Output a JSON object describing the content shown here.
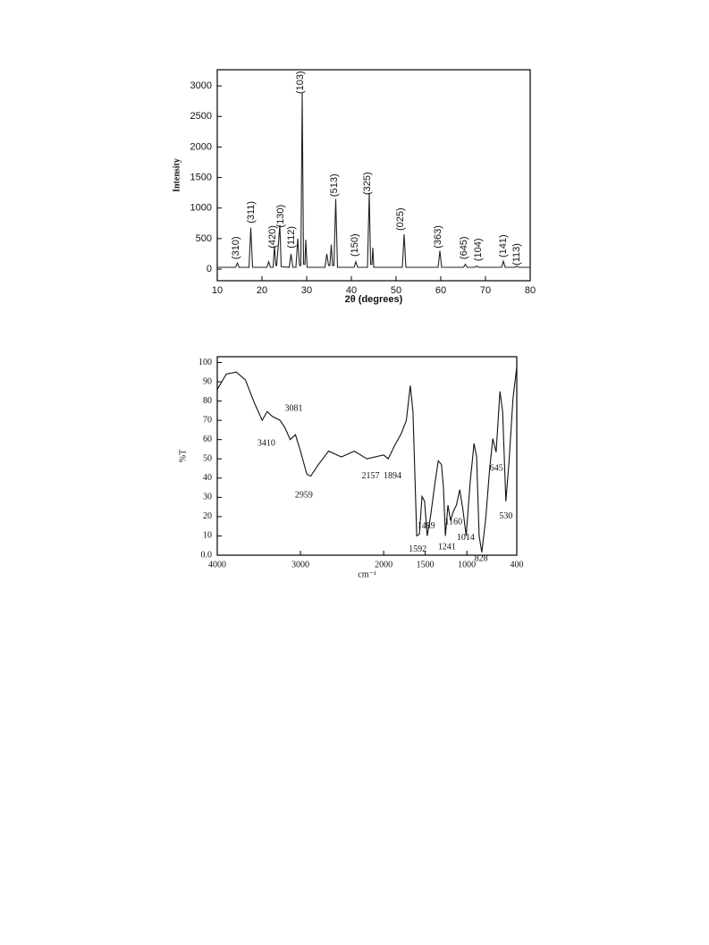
{
  "chart_data": [
    {
      "type": "line",
      "xlabel": "2θ (degrees)",
      "ylabel": "Intensity",
      "xlim": [
        10,
        80
      ],
      "ylim": [
        -190,
        3265
      ],
      "xticks": [
        10,
        20,
        30,
        40,
        50,
        60,
        70,
        80
      ],
      "yticks": [
        0,
        500,
        1000,
        1500,
        2000,
        2500,
        3000
      ],
      "color": "#222222",
      "x": [
        10,
        14.1,
        14.5,
        14.9,
        17.1,
        17.5,
        17.9,
        21.1,
        21.5,
        21.9,
        22.5,
        22.8,
        23.1,
        23.3,
        24.0,
        24.3,
        26.1,
        26.5,
        26.9,
        27.6,
        28.0,
        28.4,
        28.7,
        29.0,
        29.3,
        29.6,
        29.8,
        30.1,
        34.1,
        34.5,
        34.9,
        35.2,
        35.5,
        35.8,
        36.1,
        36.5,
        36.9,
        40.6,
        41.0,
        41.4,
        43.6,
        44.0,
        44.3,
        44.6,
        44.8,
        45.0,
        51.4,
        51.8,
        52.2,
        59.4,
        59.8,
        60.2,
        65.1,
        65.5,
        65.9,
        67.6,
        68.0,
        68.4,
        73.6,
        74.0,
        74.4,
        76.6,
        77.0,
        77.4,
        80
      ],
      "values": [
        30,
        30,
        100,
        30,
        30,
        680,
        30,
        30,
        120,
        30,
        30,
        380,
        60,
        60,
        720,
        40,
        30,
        250,
        30,
        30,
        500,
        60,
        60,
        2880,
        80,
        80,
        480,
        30,
        30,
        250,
        60,
        60,
        400,
        60,
        60,
        1150,
        30,
        30,
        120,
        30,
        30,
        1250,
        80,
        80,
        350,
        30,
        30,
        570,
        30,
        30,
        300,
        30,
        30,
        80,
        30,
        30,
        50,
        30,
        30,
        130,
        30,
        30,
        50,
        30,
        30
      ],
      "annotations": [
        {
          "text": "(310)",
          "x": 14.2,
          "y": 160
        },
        {
          "text": "(311)",
          "x": 17.6,
          "y": 750
        },
        {
          "text": "(420)",
          "x": 22.4,
          "y": 340
        },
        {
          "text": "(130)",
          "x": 24.2,
          "y": 680
        },
        {
          "text": "(112)",
          "x": 26.6,
          "y": 340
        },
        {
          "text": "(103)",
          "x": 28.6,
          "y": 2870
        },
        {
          "text": "(513)",
          "x": 36.2,
          "y": 1185
        },
        {
          "text": "(150)",
          "x": 40.8,
          "y": 205
        },
        {
          "text": "(325)",
          "x": 43.6,
          "y": 1215
        },
        {
          "text": "(025)",
          "x": 51,
          "y": 630
        },
        {
          "text": "(363)",
          "x": 59.4,
          "y": 340
        },
        {
          "text": "(645)",
          "x": 65.2,
          "y": 160
        },
        {
          "text": "(104)",
          "x": 68.4,
          "y": 130
        },
        {
          "text": "(141)",
          "x": 74,
          "y": 190
        },
        {
          "text": "(113)",
          "x": 77,
          "y": 60
        }
      ]
    },
    {
      "type": "line",
      "xlabel": "cm⁻¹",
      "ylabel": "%T",
      "xlim": [
        4000,
        400
      ],
      "ylim": [
        0,
        103
      ],
      "xticks": [
        4000,
        3000,
        2000,
        1500,
        1000,
        400
      ],
      "yticks": [
        {
          "value": 0,
          "label": "0.0"
        },
        10,
        20,
        30,
        40,
        50,
        60,
        70,
        80,
        90,
        100
      ],
      "color": "#111111",
      "x": [
        4000,
        3892,
        3770,
        3662,
        3554,
        3460,
        3400,
        3338,
        3246,
        3185,
        3123,
        3060,
        3000,
        2923,
        2877,
        2785,
        2662,
        2508,
        2354,
        2200,
        2000,
        1945,
        1867,
        1789,
        1727,
        1680,
        1648,
        1602,
        1570,
        1539,
        1508,
        1477,
        1437,
        1383,
        1344,
        1305,
        1281,
        1258,
        1227,
        1195,
        1164,
        1125,
        1086,
        1047,
        1008,
        961,
        914,
        883,
        852,
        820,
        773,
        727,
        688,
        648,
        602,
        570,
        531,
        492,
        445,
        400
      ],
      "values": [
        86,
        94,
        95,
        91,
        79,
        70,
        74.5,
        72,
        70,
        66,
        60,
        62.5,
        54,
        42,
        41,
        47,
        54,
        51,
        54,
        50,
        52,
        50,
        57,
        63,
        70,
        88,
        74.5,
        10,
        11,
        30.5,
        28,
        10,
        20,
        37.5,
        49,
        47,
        35,
        10,
        26,
        18,
        22.5,
        26,
        34,
        23.5,
        10,
        37.5,
        58,
        51,
        10,
        1.5,
        19,
        44.5,
        60.5,
        53.5,
        85,
        74.5,
        28,
        49,
        81.5,
        97.7
      ],
      "annotations": [
        {
          "text": "3410",
          "x": 3410,
          "y": 58
        },
        {
          "text": "3081",
          "x": 3081,
          "y": 76
        },
        {
          "text": "2959",
          "x": 2959,
          "y": 31
        },
        {
          "text": "2157",
          "x": 2157,
          "y": 41
        },
        {
          "text": "1894",
          "x": 1894,
          "y": 41
        },
        {
          "text": "1592",
          "x": 1592,
          "y": 3
        },
        {
          "text": "1489",
          "x": 1489,
          "y": 15
        },
        {
          "text": "1241",
          "x": 1241,
          "y": 4
        },
        {
          "text": "1160",
          "x": 1160,
          "y": 17
        },
        {
          "text": "1014",
          "x": 1014,
          "y": 9
        },
        {
          "text": "828",
          "x": 828,
          "y": -2
        },
        {
          "text": "645",
          "x": 645,
          "y": 45
        },
        {
          "text": "530",
          "x": 530,
          "y": 20
        }
      ]
    }
  ]
}
